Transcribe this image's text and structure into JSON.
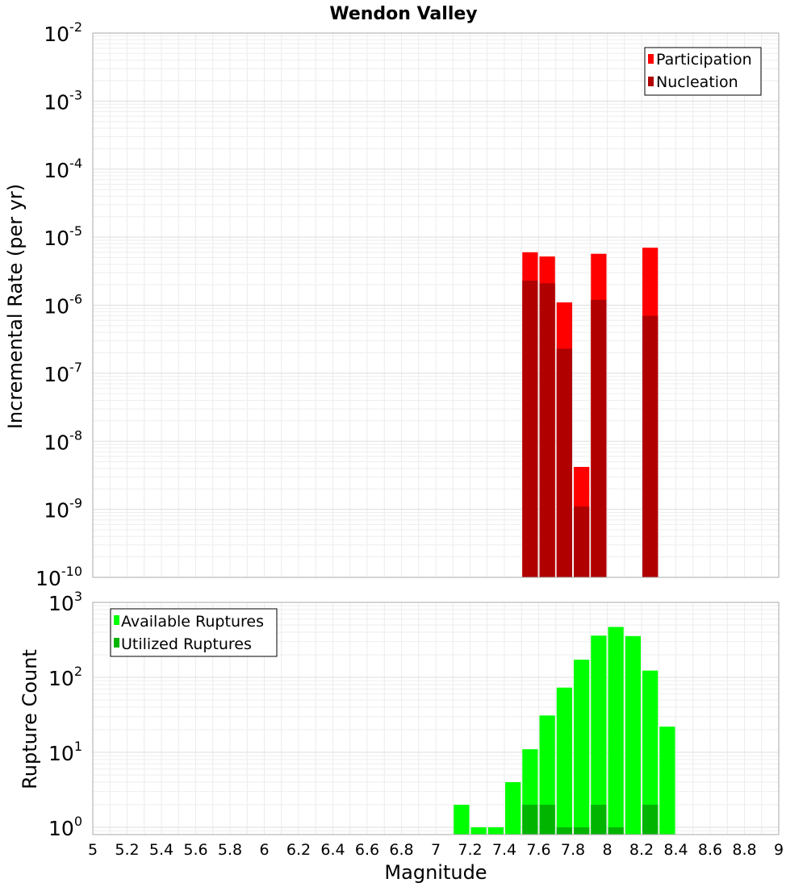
{
  "chart_data": [
    {
      "type": "bar",
      "scale": "log",
      "title": "Wendon Valley",
      "xlabel": "",
      "ylabel": "Incremental Rate (per yr)",
      "xlim": [
        5,
        9
      ],
      "ylim": [
        1e-10,
        0.01
      ],
      "yticks": [
        {
          "base": "10",
          "exp": "-10",
          "value": 1e-10
        },
        {
          "base": "10",
          "exp": "-9",
          "value": 1e-09
        },
        {
          "base": "10",
          "exp": "-8",
          "value": 1e-08
        },
        {
          "base": "10",
          "exp": "-7",
          "value": 1e-07
        },
        {
          "base": "10",
          "exp": "-6",
          "value": 1e-06
        },
        {
          "base": "10",
          "exp": "-5",
          "value": 1e-05
        },
        {
          "base": "10",
          "exp": "-4",
          "value": 0.0001
        },
        {
          "base": "10",
          "exp": "-3",
          "value": 0.001
        },
        {
          "base": "10",
          "exp": "-2",
          "value": 0.01
        }
      ],
      "legend": {
        "position": "top-right",
        "entries": [
          "Participation",
          "Nucleation"
        ]
      },
      "series": [
        {
          "name": "Participation",
          "color": "#ff0000",
          "x": [
            7.55,
            7.65,
            7.75,
            7.85,
            7.95,
            8.25
          ],
          "values": [
            6e-06,
            5.2e-06,
            1.1e-06,
            4.2e-09,
            5.7e-06,
            7e-06
          ]
        },
        {
          "name": "Nucleation",
          "color": "#b00000",
          "x": [
            7.55,
            7.65,
            7.75,
            7.85,
            7.95,
            8.25
          ],
          "values": [
            2.3e-06,
            2.1e-06,
            2.3e-07,
            1.1e-09,
            1.2e-06,
            7e-07
          ]
        }
      ]
    },
    {
      "type": "bar",
      "scale": "log",
      "title": "",
      "xlabel": "Magnitude",
      "ylabel": "Rupture Count",
      "xlim": [
        5,
        9
      ],
      "ylim": [
        0.8,
        1000
      ],
      "xticks": [
        "5",
        "5.2",
        "5.4",
        "5.6",
        "5.8",
        "6",
        "6.2",
        "6.4",
        "6.6",
        "6.8",
        "7",
        "7.2",
        "7.4",
        "7.6",
        "7.8",
        "8",
        "8.2",
        "8.4",
        "8.6",
        "8.8",
        "9"
      ],
      "yticks": [
        {
          "base": "10",
          "exp": "0",
          "value": 1
        },
        {
          "base": "10",
          "exp": "1",
          "value": 10
        },
        {
          "base": "10",
          "exp": "2",
          "value": 100
        },
        {
          "base": "10",
          "exp": "3",
          "value": 1000
        }
      ],
      "legend": {
        "position": "top-left",
        "entries": [
          "Available Ruptures",
          "Utilized Ruptures"
        ]
      },
      "series": [
        {
          "name": "Available Ruptures",
          "color": "#00ff00",
          "x": [
            7.15,
            7.25,
            7.35,
            7.45,
            7.55,
            7.65,
            7.75,
            7.85,
            7.95,
            8.05,
            8.15,
            8.25,
            8.35
          ],
          "values": [
            2,
            1,
            1,
            4,
            11,
            31,
            73,
            172,
            360,
            470,
            355,
            123,
            22
          ]
        },
        {
          "name": "Utilized Ruptures",
          "color": "#00b400",
          "x": [
            7.55,
            7.65,
            7.75,
            7.85,
            7.95,
            8.05,
            8.25
          ],
          "values": [
            2,
            2,
            1,
            1,
            2,
            1,
            2
          ]
        }
      ]
    }
  ]
}
